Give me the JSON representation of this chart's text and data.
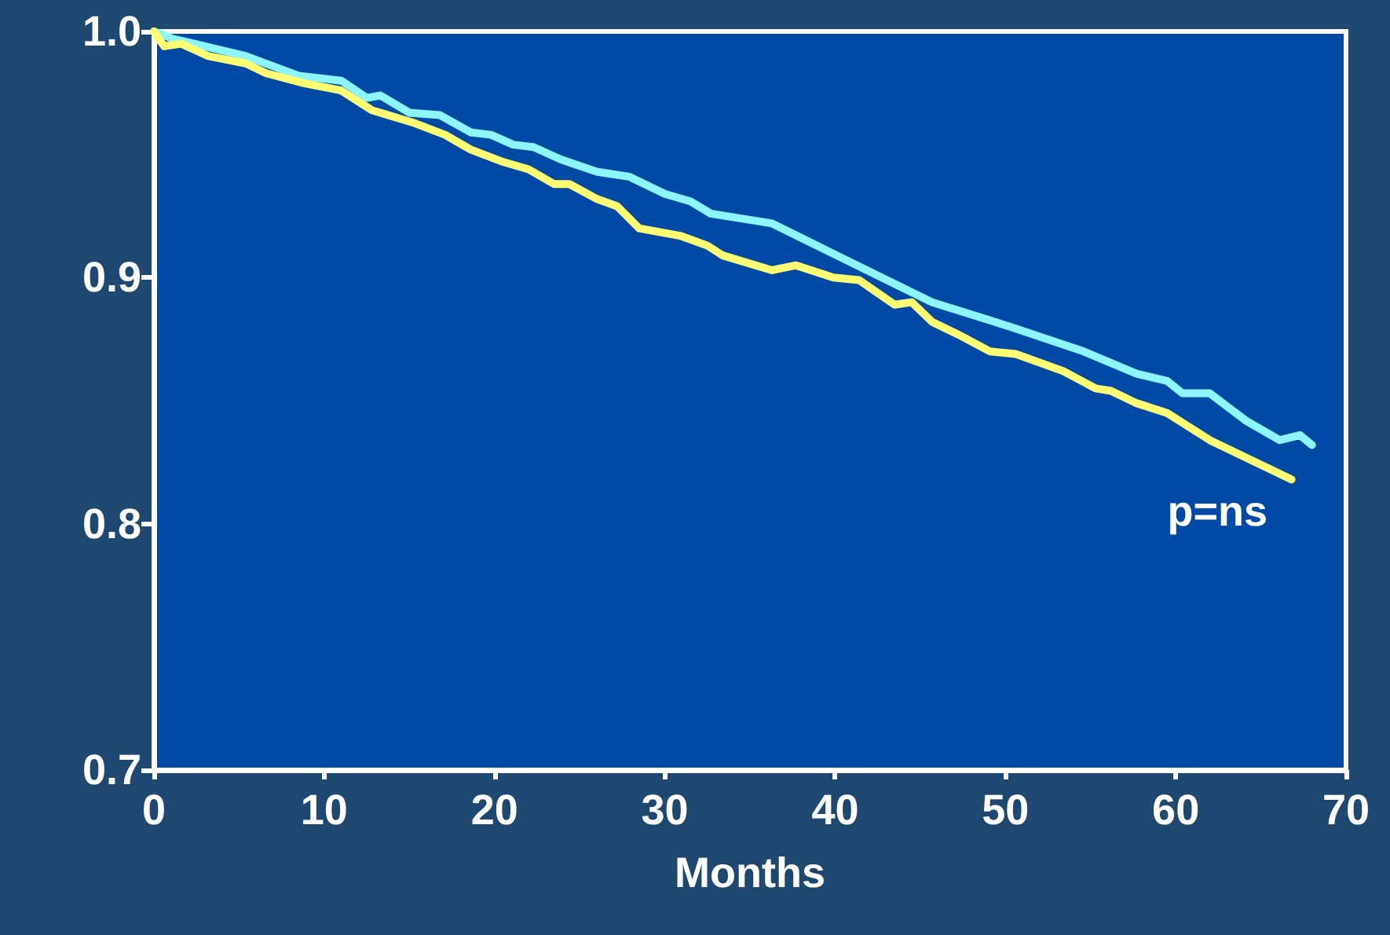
{
  "chart_data": {
    "type": "line",
    "xlabel": "Months",
    "annotations": [
      "p=ns"
    ],
    "series": [
      {
        "color": "#8cf5ff",
        "x": [
          0,
          1.1,
          3,
          5.4,
          8.5,
          11,
          12.5,
          13.3,
          15,
          16.8,
          18.6,
          19.8,
          21.1,
          22.3,
          23.9,
          26,
          27.9,
          30,
          31.5,
          32.7,
          36.3,
          40.1,
          45.7,
          50.3,
          54.6,
          57.7,
          59.5,
          60.4,
          62,
          64.1,
          66.1,
          67.3,
          68
        ],
        "values": [
          1.0,
          0.997,
          0.994,
          0.99,
          0.982,
          0.98,
          0.973,
          0.974,
          0.967,
          0.966,
          0.959,
          0.958,
          0.954,
          0.953,
          0.948,
          0.943,
          0.941,
          0.934,
          0.931,
          0.926,
          0.922,
          0.909,
          0.89,
          0.88,
          0.87,
          0.861,
          0.858,
          0.853,
          0.853,
          0.842,
          0.834,
          0.836,
          0.832
        ]
      },
      {
        "color": "#ffff73",
        "x": [
          0,
          0.6,
          1.6,
          3.2,
          5.4,
          6.6,
          8.8,
          11,
          12.8,
          15.2,
          17.1,
          18.6,
          20.5,
          22,
          23.5,
          24.4,
          26,
          27.2,
          28.5,
          30.9,
          32.5,
          33.4,
          36.3,
          37.7,
          39.9,
          41.4,
          43.5,
          44.5,
          45.7,
          47.2,
          49.1,
          50.6,
          53.4,
          55.3,
          56.2,
          57.7,
          59.5,
          62,
          63.2,
          66.8
        ],
        "values": [
          1.0,
          0.994,
          0.995,
          0.99,
          0.987,
          0.983,
          0.979,
          0.976,
          0.968,
          0.963,
          0.958,
          0.952,
          0.947,
          0.944,
          0.938,
          0.938,
          0.932,
          0.929,
          0.92,
          0.917,
          0.913,
          0.909,
          0.903,
          0.905,
          0.9,
          0.899,
          0.889,
          0.89,
          0.882,
          0.877,
          0.87,
          0.869,
          0.862,
          0.855,
          0.854,
          0.849,
          0.845,
          0.834,
          0.83,
          0.818
        ]
      }
    ],
    "xlim": [
      0,
      70
    ],
    "xticks": [
      0,
      10,
      20,
      30,
      40,
      50,
      60,
      70
    ],
    "ylim": [
      0.7,
      1.0
    ],
    "yticks": [
      {
        "value": 0.7,
        "label": "0.7"
      },
      {
        "value": 0.8,
        "label": "0.8"
      },
      {
        "value": 0.9,
        "label": "0.9"
      },
      {
        "value": 1.0,
        "label": "1.0"
      }
    ],
    "grid": false,
    "marker": "none",
    "line_style": "solid"
  }
}
